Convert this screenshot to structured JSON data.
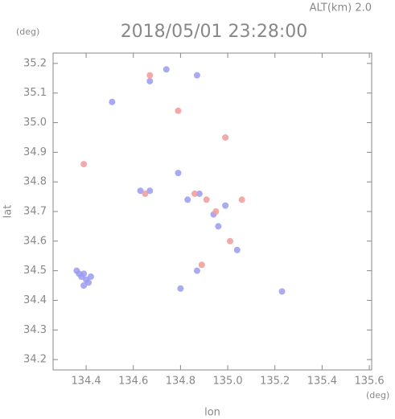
{
  "chart_data": {
    "type": "scatter",
    "header": "ALT(km) 2.0",
    "title": "2018/05/01 23:28:00",
    "y_unit": "(deg)",
    "x_unit": "(deg)",
    "x_label": "lon",
    "y_label": "lat",
    "xlim": [
      134.26,
      135.61
    ],
    "ylim": [
      34.165,
      35.235
    ],
    "xticks": [
      134.4,
      134.6,
      134.8,
      {
        "value": 135,
        "label": "135.0"
      },
      135.2,
      135.4,
      135.6
    ],
    "yticks": [
      34.2,
      34.3,
      34.4,
      34.5,
      34.6,
      34.7,
      34.8,
      34.9,
      {
        "value": 35,
        "label": "35.0"
      },
      35.1,
      35.2
    ],
    "series": [
      {
        "color": "#9a9af2",
        "x": [
          134.38,
          134.4,
          134.37,
          134.41,
          134.39,
          134.36,
          134.42,
          134.39,
          135.23,
          134.63,
          134.67,
          134.83,
          134.88,
          134.94,
          134.99,
          135.04,
          134.96,
          134.87,
          134.79,
          134.74,
          134.67,
          134.87,
          134.8,
          134.51
        ],
        "values": [
          34.48,
          34.47,
          34.49,
          34.46,
          34.45,
          34.5,
          34.48,
          34.49,
          34.43,
          34.77,
          34.77,
          34.74,
          34.76,
          34.69,
          34.72,
          34.57,
          34.65,
          34.5,
          34.83,
          35.18,
          35.14,
          35.16,
          34.44,
          35.07
        ]
      },
      {
        "color": "#f29a9a",
        "x": [
          134.99,
          134.67,
          134.79,
          134.39,
          134.86,
          134.91,
          135.01,
          134.89,
          135.06,
          134.65,
          134.95
        ],
        "values": [
          34.95,
          35.16,
          35.04,
          34.86,
          34.76,
          34.74,
          34.6,
          34.52,
          34.74,
          34.76,
          34.7
        ]
      }
    ]
  }
}
